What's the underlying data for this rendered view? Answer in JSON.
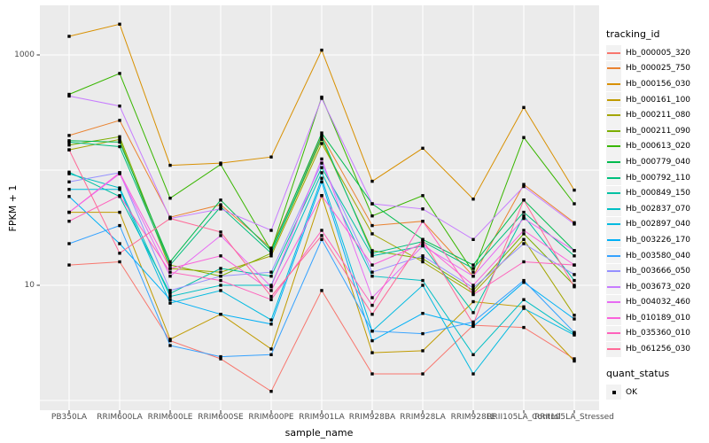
{
  "chart_data": {
    "type": "line",
    "title": "",
    "xlabel": "sample_name",
    "ylabel": "FPKM + 1",
    "y_scale": "log10",
    "y_ticks": [
      10,
      1000
    ],
    "y_gridlines": [
      1,
      10,
      100,
      1000
    ],
    "ylim": [
      0.9,
      2700
    ],
    "grid": "on",
    "legend_position": "right",
    "point_shape": "filled-square",
    "point_color": "#000000",
    "categories": [
      "PB350LA",
      "RRIM600LA",
      "RRIM600LE",
      "RRIM600SE",
      "RRIM600PE",
      "RRIM901LA",
      "RRIM928BA",
      "RRIM928LA",
      "RRIM928LE",
      "RRII105LA_Control",
      "RRII105LA_Stressed"
    ],
    "series": [
      {
        "name": "Hb_000005_320",
        "color": "#F8766D",
        "values": [
          15,
          16,
          3.3,
          2.3,
          1.2,
          9,
          1.7,
          1.7,
          4.5,
          4.3,
          2.3
        ]
      },
      {
        "name": "Hb_000025_750",
        "color": "#EA8331",
        "values": [
          200,
          270,
          39,
          50,
          21,
          200,
          33,
          36,
          12,
          75,
          35
        ]
      },
      {
        "name": "Hb_000156_030",
        "color": "#D89000",
        "values": [
          1450,
          1850,
          110,
          115,
          130,
          1100,
          80,
          155,
          56,
          350,
          67
        ]
      },
      {
        "name": "Hb_000161_100",
        "color": "#C09B00",
        "values": [
          43,
          43,
          3.4,
          5.6,
          2.8,
          60,
          2.6,
          2.7,
          7.2,
          6.5,
          2.2
        ]
      },
      {
        "name": "Hb_000211_080",
        "color": "#A3A500",
        "values": [
          150,
          185,
          14,
          13,
          18,
          170,
          28,
          16,
          8.5,
          25,
          5.5
        ]
      },
      {
        "name": "Hb_000211_090",
        "color": "#7CAE00",
        "values": [
          165,
          195,
          15,
          12,
          19,
          185,
          20,
          17,
          9,
          28,
          10
        ]
      },
      {
        "name": "Hb_000613_020",
        "color": "#39B600",
        "values": [
          455,
          690,
          57,
          112,
          20,
          430,
          40,
          60,
          13,
          192,
          51
        ]
      },
      {
        "name": "Hb_000779_040",
        "color": "#00BB4E",
        "values": [
          180,
          175,
          16,
          55,
          20,
          210,
          51,
          25,
          15,
          55,
          20
        ]
      },
      {
        "name": "Hb_000792_110",
        "color": "#00BF7D",
        "values": [
          175,
          160,
          15,
          48,
          19,
          195,
          19,
          24,
          14,
          43,
          18
        ]
      },
      {
        "name": "Hb_000849_150",
        "color": "#00C1A3",
        "values": [
          96,
          59,
          8.5,
          14,
          12,
          105,
          18,
          22,
          5.8,
          40,
          11
        ]
      },
      {
        "name": "Hb_002837_070",
        "color": "#00BFC4",
        "values": [
          93,
          70,
          8,
          10,
          10,
          95,
          12,
          11,
          2.5,
          7.5,
          3.8
        ]
      },
      {
        "name": "Hb_002897_040",
        "color": "#00BAE0",
        "values": [
          68,
          68,
          7,
          9,
          5,
          85,
          4,
          10,
          1.7,
          6.3,
          3.7
        ]
      },
      {
        "name": "Hb_003226_170",
        "color": "#00B0F6",
        "values": [
          59,
          23,
          7.5,
          5.6,
          4.6,
          79,
          3.3,
          5.7,
          4.4,
          10.6,
          5.1
        ]
      },
      {
        "name": "Hb_003580_040",
        "color": "#35A2FF",
        "values": [
          23,
          33,
          3,
          2.4,
          2.5,
          25,
          4,
          3.8,
          4.8,
          11,
          3.9
        ]
      },
      {
        "name": "Hb_003666_050",
        "color": "#9590FF",
        "values": [
          79,
          95,
          9,
          12,
          13,
          115,
          13,
          18,
          9.5,
          23,
          12.4
        ]
      },
      {
        "name": "Hb_003673_020",
        "color": "#C77CFF",
        "values": [
          440,
          360,
          38,
          46,
          30,
          420,
          51,
          46,
          25,
          72,
          34
        ]
      },
      {
        "name": "Hb_004032_460",
        "color": "#E76BF3",
        "values": [
          43,
          93,
          12,
          27,
          9.7,
          125,
          7.8,
          22,
          12,
          38,
          20
        ]
      },
      {
        "name": "Hb_010189_010",
        "color": "#FA62DB",
        "values": [
          43,
          95,
          14,
          18,
          9,
          60,
          15,
          23,
          10,
          30,
          15
        ]
      },
      {
        "name": "Hb_035360_010",
        "color": "#FF62BC",
        "values": [
          36,
          60,
          13,
          11,
          7.5,
          30,
          6.7,
          36,
          8.3,
          16,
          15
        ]
      },
      {
        "name": "Hb_061256_030",
        "color": "#FF6A98",
        "values": [
          150,
          19,
          38,
          29,
          8,
          27,
          5.6,
          25,
          4.6,
          55,
          9.7
        ]
      }
    ]
  },
  "legend": {
    "tracking_title": "tracking_id",
    "quant_title": "quant_status",
    "quant_entries": [
      {
        "label": "OK"
      }
    ]
  },
  "colors": {
    "panel_bg": "#EBEBEB",
    "gridline": "#FFFFFF",
    "axis_text": "#4D4D4D",
    "axis_title": "#000000",
    "tick_mark": "#333333",
    "point": "#000000",
    "legend_key_bg": "#F2F2F2"
  }
}
